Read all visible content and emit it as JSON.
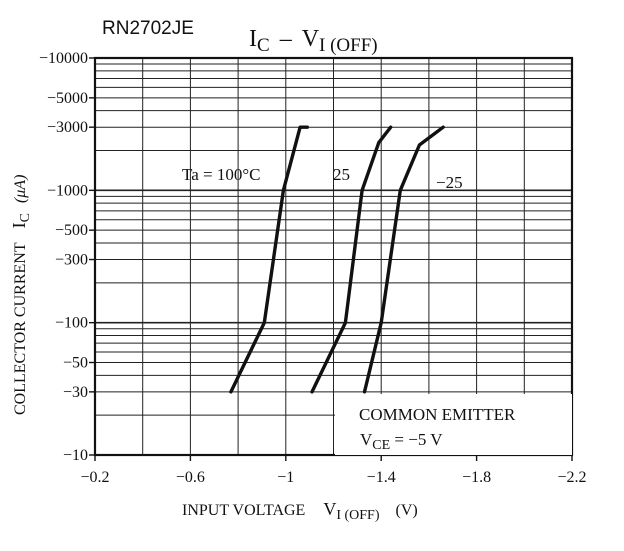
{
  "part_number": "RN2702JE",
  "chart_data": {
    "type": "line",
    "title": {
      "main": "I",
      "main_sub": "C",
      "dash": "–",
      "second": "V",
      "second_sub": "I (OFF)"
    },
    "x_axis": {
      "label_main": "INPUT VOLTAGE",
      "label_symbol": "V",
      "label_sub": "I (OFF)",
      "label_unit": "(V)",
      "range": [
        -0.2,
        -2.2
      ],
      "ticks": [
        -0.2,
        -0.6,
        -1.0,
        -1.4,
        -1.8,
        -2.2
      ],
      "tick_labels": [
        "−0.2",
        "−0.6",
        "−1",
        "−1.4",
        "−1.8",
        "−2.2"
      ],
      "grid_step": -0.2
    },
    "y_axis": {
      "label_main": "COLLECTOR CURRENT",
      "label_symbol": "I",
      "label_sub": "C",
      "label_unit": "(μA)",
      "scale": "log",
      "range": [
        -10,
        -10000
      ],
      "ticks": [
        -10,
        -30,
        -50,
        -100,
        -300,
        -500,
        -1000,
        -3000,
        -5000,
        -10000
      ],
      "tick_labels": [
        "−10",
        "−30",
        "−50",
        "−100",
        "−300",
        "−500",
        "−1000",
        "−3000",
        "−5000",
        "−10000"
      ]
    },
    "series": [
      {
        "name": "Ta = 100°C",
        "points": [
          [
            -0.77,
            -30
          ],
          [
            -0.91,
            -100
          ],
          [
            -0.99,
            -1000
          ],
          [
            -1.06,
            -3000
          ],
          [
            -1.09,
            -3000
          ]
        ]
      },
      {
        "name": "25",
        "points": [
          [
            -1.11,
            -30
          ],
          [
            -1.25,
            -100
          ],
          [
            -1.32,
            -1000
          ],
          [
            -1.39,
            -2300
          ],
          [
            -1.44,
            -3000
          ]
        ]
      },
      {
        "name": "−25",
        "points": [
          [
            -1.33,
            -30
          ],
          [
            -1.4,
            -100
          ],
          [
            -1.48,
            -1000
          ],
          [
            -1.56,
            -2200
          ],
          [
            -1.66,
            -3000
          ]
        ]
      }
    ],
    "annotations": {
      "line1": "COMMON EMITTER",
      "line2_symbol": "V",
      "line2_sub": "CE",
      "line2_value": " = −5 V"
    },
    "grid": true,
    "legend": "inline labels"
  }
}
